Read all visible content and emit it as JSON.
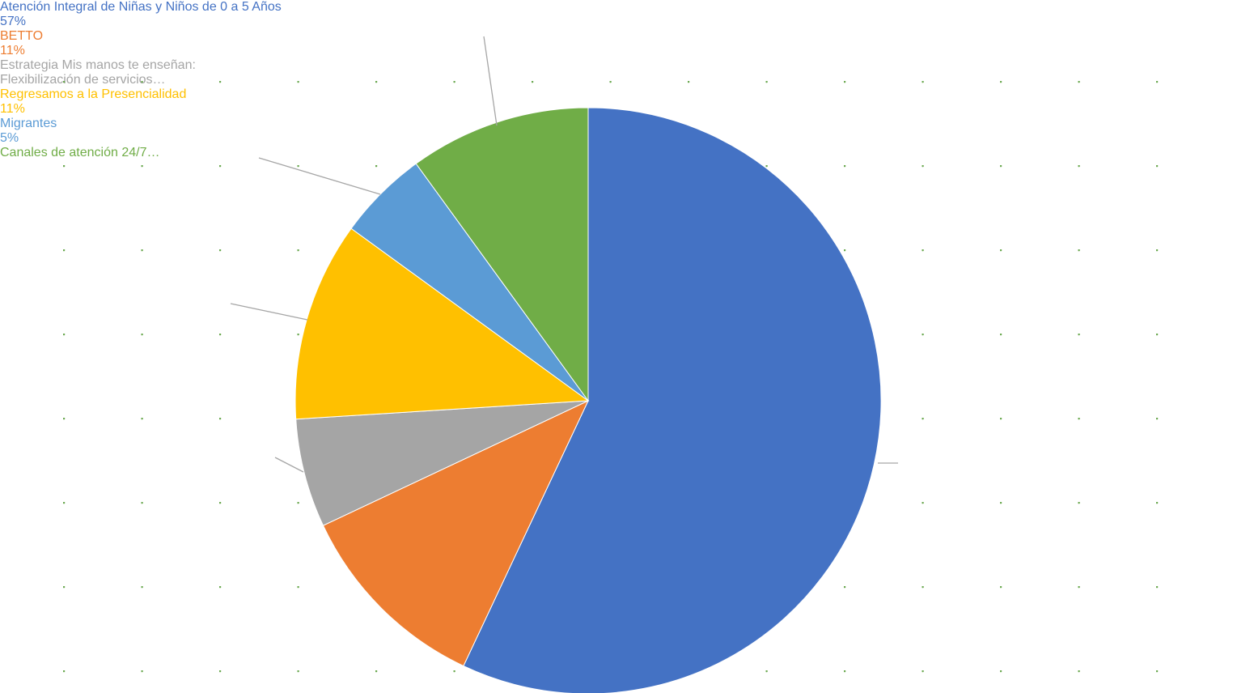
{
  "chart_data": {
    "type": "pie",
    "categories": [
      "Atención Integral de Niñas y Niños de 0 a 5 Años",
      "BETTO",
      "Estrategia Mis manos te enseñan: Flexibilización de servicios…",
      "Regresamos a la Presencialidad",
      "Migrantes",
      "Canales de atención 24/7…"
    ],
    "values": [
      57,
      11,
      6,
      11,
      5,
      10
    ],
    "value_labels": [
      "57%",
      "11%",
      null,
      "11%",
      "5%",
      null
    ],
    "colors": [
      "#4472c4",
      "#ed7d31",
      "#a5a5a5",
      "#ffc000",
      "#5b9bd5",
      "#70ad47"
    ]
  }
}
